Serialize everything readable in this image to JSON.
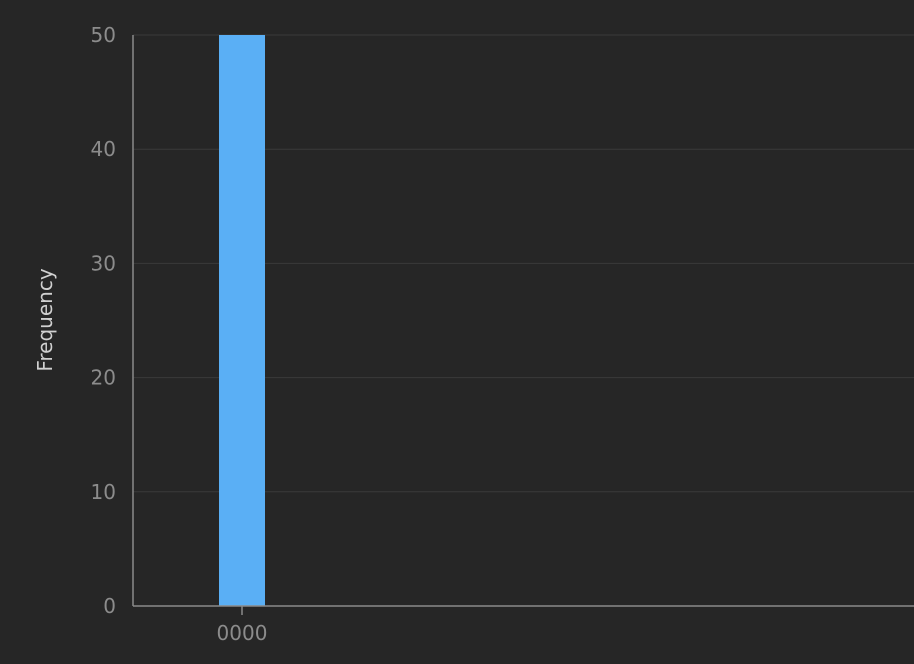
{
  "chart_data": {
    "type": "bar",
    "categories": [
      "0000"
    ],
    "values": [
      50
    ],
    "ylabel": "Frequency",
    "ylim": [
      0,
      50
    ],
    "yticks": [
      0,
      10,
      20,
      30,
      40,
      50
    ],
    "grid": true,
    "colors": {
      "bar": "#5aaff5",
      "background": "#262626",
      "grid": "#3a3a3a",
      "axis": "#8a8a8a",
      "tick_text": "#8c8c8c",
      "title_text": "#d0d0d0"
    }
  }
}
